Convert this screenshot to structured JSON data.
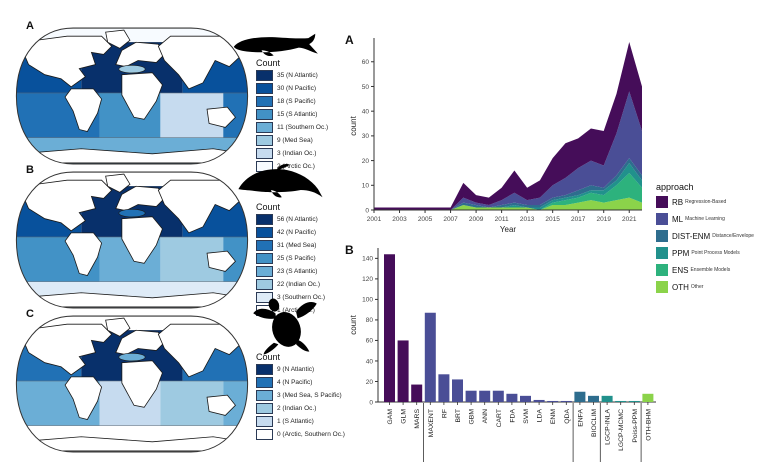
{
  "figure": {
    "maps": [
      {
        "panel_label": "A",
        "icon": "whale-icon",
        "legend_title": "Count",
        "legend": [
          {
            "label": "35 (N Atlantic)",
            "color": "#08306b"
          },
          {
            "label": "30 (N Pacific)",
            "color": "#08519c"
          },
          {
            "label": "18 (S Pacific)",
            "color": "#2171b5"
          },
          {
            "label": "15 (S Atlantic)",
            "color": "#4292c6"
          },
          {
            "label": "11 (Southern Oc.)",
            "color": "#6baed6"
          },
          {
            "label": "9 (Med Sea)",
            "color": "#9ecae1"
          },
          {
            "label": "3 (Indian Oc.)",
            "color": "#c6dbef"
          },
          {
            "label": "2 (Arctic Oc.)",
            "color": "#f7fbff"
          }
        ],
        "region_colors": {
          "arctic": "#f7fbff",
          "npac": "#08519c",
          "natl": "#08306b",
          "med": "#9ecae1",
          "spac": "#2171b5",
          "satl": "#4292c6",
          "indian": "#c6dbef",
          "southern": "#6baed6"
        }
      },
      {
        "panel_label": "B",
        "icon": "dolphin-icon",
        "legend_title": "Count",
        "legend": [
          {
            "label": "56 (N Atlantic)",
            "color": "#08306b"
          },
          {
            "label": "42 (N Pacific)",
            "color": "#08519c"
          },
          {
            "label": "31 (Med Sea)",
            "color": "#2171b5"
          },
          {
            "label": "25 (S Pacific)",
            "color": "#4292c6"
          },
          {
            "label": "23 (S Atlantic)",
            "color": "#6baed6"
          },
          {
            "label": "22 (Indian Oc.)",
            "color": "#9ecae1"
          },
          {
            "label": "3 (Southern Oc.)",
            "color": "#deebf7"
          },
          {
            "label": "1 (Arctic Oc.)",
            "color": "#ffffff"
          }
        ],
        "region_colors": {
          "arctic": "#ffffff",
          "npac": "#08519c",
          "natl": "#08306b",
          "med": "#2171b5",
          "spac": "#4292c6",
          "satl": "#6baed6",
          "indian": "#9ecae1",
          "southern": "#deebf7"
        }
      },
      {
        "panel_label": "C",
        "icon": "turtle-icon",
        "legend_title": "Count",
        "legend": [
          {
            "label": "9 (N Atlantic)",
            "color": "#08306b"
          },
          {
            "label": "4 (N Pacific)",
            "color": "#2171b5"
          },
          {
            "label": "3 (Med Sea, S Pacific)",
            "color": "#6baed6"
          },
          {
            "label": "2 (Indian Oc.)",
            "color": "#9ecae1"
          },
          {
            "label": "1 (S Atlantic)",
            "color": "#c6dbef"
          },
          {
            "label": "0 (Arctic, Southern Oc.)",
            "color": "#ffffff"
          }
        ],
        "region_colors": {
          "arctic": "#ffffff",
          "npac": "#2171b5",
          "natl": "#08306b",
          "med": "#6baed6",
          "spac": "#6baed6",
          "satl": "#c6dbef",
          "indian": "#9ecae1",
          "southern": "#ffffff"
        }
      }
    ]
  },
  "chart_data": [
    {
      "type": "area",
      "panel_label": "A",
      "xlabel": "Year",
      "ylabel": "count",
      "x": [
        2001,
        2002,
        2003,
        2004,
        2005,
        2006,
        2007,
        2008,
        2009,
        2010,
        2011,
        2012,
        2013,
        2014,
        2015,
        2016,
        2017,
        2018,
        2019,
        2020,
        2021,
        2022
      ],
      "x_ticks": [
        2001,
        2003,
        2005,
        2007,
        2009,
        2011,
        2013,
        2015,
        2017,
        2019,
        2021
      ],
      "ylim": [
        0,
        68
      ],
      "yticks": [
        0,
        10,
        20,
        30,
        40,
        50,
        60
      ],
      "series": [
        {
          "name": "OTH",
          "color": "#8bd34a",
          "values": [
            0,
            0,
            0,
            0,
            0,
            0,
            0,
            2,
            1,
            1,
            1,
            1,
            1,
            0,
            2,
            2,
            3,
            4,
            3,
            4,
            5,
            3
          ]
        },
        {
          "name": "ENS",
          "color": "#2db27d",
          "values": [
            0,
            0,
            0,
            0,
            0,
            0,
            0,
            0,
            0,
            0,
            0,
            0,
            0,
            0,
            1,
            2,
            2,
            3,
            3,
            6,
            10,
            6
          ]
        },
        {
          "name": "PPM",
          "color": "#21918c",
          "values": [
            0,
            0,
            0,
            0,
            0,
            0,
            0,
            0,
            0,
            0,
            0,
            1,
            0,
            1,
            1,
            1,
            1,
            1,
            2,
            2,
            4,
            3
          ]
        },
        {
          "name": "DIST-ENM",
          "color": "#2e6d8e",
          "values": [
            0,
            0,
            0,
            0,
            0,
            0,
            0,
            1,
            1,
            0,
            1,
            1,
            1,
            1,
            1,
            1,
            2,
            2,
            1,
            2,
            2,
            2
          ]
        },
        {
          "name": "ML",
          "color": "#4a4e96",
          "values": [
            0,
            0,
            0,
            0,
            0,
            0,
            0,
            2,
            1,
            1,
            2,
            4,
            2,
            3,
            5,
            7,
            9,
            10,
            9,
            17,
            27,
            18
          ]
        },
        {
          "name": "RB",
          "color": "#450d59",
          "values": [
            1,
            1,
            1,
            1,
            1,
            1,
            1,
            6,
            3,
            3,
            5,
            9,
            5,
            7,
            11,
            14,
            12,
            13,
            14,
            16,
            20,
            18
          ]
        }
      ],
      "legend_title": "approach",
      "legend": [
        {
          "abbr": "RB",
          "desc": "Regression-Based",
          "color": "#450d59"
        },
        {
          "abbr": "ML",
          "desc": "Machine Learning",
          "color": "#4a4e96"
        },
        {
          "abbr": "DIST-ENM",
          "desc": "Distance/Envelope",
          "color": "#2e6d8e"
        },
        {
          "abbr": "PPM",
          "desc": "Point Process Models",
          "color": "#21918c"
        },
        {
          "abbr": "ENS",
          "desc": "Ensemble Models",
          "color": "#2db27d"
        },
        {
          "abbr": "OTH",
          "desc": "Other",
          "color": "#8bd34a"
        }
      ]
    },
    {
      "type": "bar",
      "panel_label": "B",
      "ylabel": "count",
      "ylim": [
        0,
        150
      ],
      "yticks": [
        0,
        20,
        40,
        60,
        80,
        100,
        120,
        140
      ],
      "categories": [
        "GAM",
        "GLM",
        "MARS",
        "MAXENT",
        "RF",
        "BRT",
        "GBM",
        "ANN",
        "CART",
        "FDA",
        "SVM",
        "LDA",
        "ENM",
        "QDA",
        "ENFA",
        "BIOCLIM",
        "LGCP-INLA",
        "LGCP-MCMC",
        "Poiss-PPM",
        "OTH-BHM"
      ],
      "values": [
        144,
        60,
        17,
        87,
        27,
        22,
        11,
        11,
        11,
        8,
        6,
        2,
        1,
        1,
        10,
        6,
        6,
        1,
        1,
        8
      ],
      "colors": [
        "#450d59",
        "#450d59",
        "#450d59",
        "#4a4e96",
        "#4a4e96",
        "#4a4e96",
        "#4a4e96",
        "#4a4e96",
        "#4a4e96",
        "#4a4e96",
        "#4a4e96",
        "#4a4e96",
        "#4a4e96",
        "#4a4e96",
        "#2e6d8e",
        "#2e6d8e",
        "#21918c",
        "#21918c",
        "#21918c",
        "#8bd34a"
      ],
      "group_separators_after": [
        2,
        13,
        15,
        18
      ]
    }
  ]
}
